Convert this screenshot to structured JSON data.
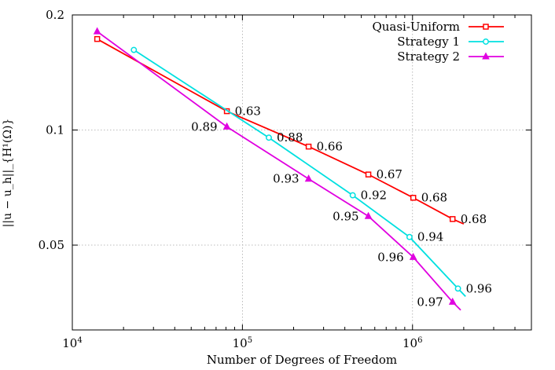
{
  "chart_data": {
    "type": "line",
    "xlabel": "Number of Degrees of Freedom",
    "ylabel": "||u − u_h||_{H¹(Ω)}",
    "xscale": "log",
    "yscale": "log",
    "xlim": [
      10000,
      5000000
    ],
    "ylim": [
      0.03,
      0.2
    ],
    "grid": true,
    "legend_position": "top-right",
    "x_ticks": [
      {
        "value": 10000,
        "base": "10",
        "exp": "4"
      },
      {
        "value": 100000,
        "base": "10",
        "exp": "5"
      },
      {
        "value": 1000000,
        "base": "10",
        "exp": "6"
      }
    ],
    "y_ticks": [
      {
        "value": 0.05,
        "label": "0.05"
      },
      {
        "value": 0.1,
        "label": "0.1"
      },
      {
        "value": 0.2,
        "label": "0.2"
      }
    ],
    "series": [
      {
        "name": "Quasi-Uniform",
        "color": "#ff0000",
        "marker": "square",
        "x": [
          14000,
          81000,
          245000,
          550000,
          1010000,
          1720000
        ],
        "y": [
          0.173,
          0.112,
          0.0905,
          0.0765,
          0.0665,
          0.0585
        ],
        "line_end": [
          2000000,
          0.0568
        ],
        "labels": [
          {
            "text": "0.63",
            "at": 1,
            "side": "right"
          },
          {
            "text": "0.66",
            "at": 2,
            "side": "right"
          },
          {
            "text": "0.67",
            "at": 3,
            "side": "right"
          },
          {
            "text": "0.68",
            "at": 4,
            "side": "right"
          },
          {
            "text": "0.68",
            "at": 5,
            "side": "right"
          }
        ]
      },
      {
        "name": "Strategy 1",
        "color": "#00e0e0",
        "marker": "circle",
        "x": [
          23000,
          143000,
          445000,
          960000,
          1850000
        ],
        "y": [
          0.162,
          0.0955,
          0.0675,
          0.0525,
          0.0385
        ],
        "line_end": [
          2050000,
          0.0367
        ],
        "labels": [
          {
            "text": "0.88",
            "at": 1,
            "side": "right"
          },
          {
            "text": "0.92",
            "at": 2,
            "side": "right"
          },
          {
            "text": "0.94",
            "at": 3,
            "side": "right"
          },
          {
            "text": "0.96",
            "at": 4,
            "side": "right"
          }
        ]
      },
      {
        "name": "Strategy 2",
        "color": "#e000e0",
        "marker": "triangle",
        "x": [
          14000,
          81000,
          245000,
          550000,
          1010000,
          1720000
        ],
        "y": [
          0.181,
          0.102,
          0.0745,
          0.0595,
          0.0465,
          0.0355
        ],
        "line_end": [
          1920000,
          0.0338
        ],
        "labels": [
          {
            "text": "0.89",
            "at": 1,
            "side": "left"
          },
          {
            "text": "0.93",
            "at": 2,
            "side": "left"
          },
          {
            "text": "0.95",
            "at": 3,
            "side": "left"
          },
          {
            "text": "0.96",
            "at": 4,
            "side": "left"
          },
          {
            "text": "0.97",
            "at": 5,
            "side": "left"
          }
        ]
      }
    ]
  }
}
